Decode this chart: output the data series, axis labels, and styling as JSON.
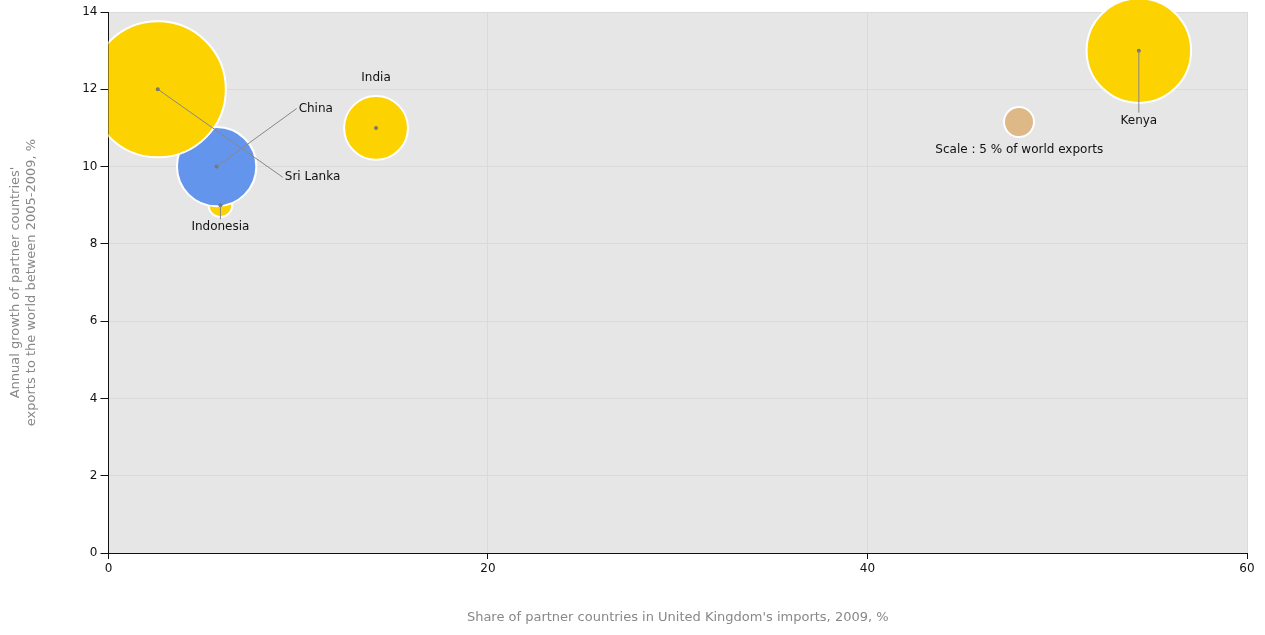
{
  "chart_data": {
    "type": "bubble",
    "xlabel": "Share of partner countries in United Kingdom's imports, 2009, %",
    "ylabel": "Annual growth of partner countries' exports to the world between 2005-2009, %",
    "xlim": [
      0,
      60
    ],
    "xticks": [
      0,
      20,
      40,
      60
    ],
    "ylim": [
      0,
      14
    ],
    "yticks": [
      0,
      2,
      4,
      6,
      8,
      10,
      12,
      14
    ],
    "grid": true,
    "legend": false,
    "annotations": [
      "Scale : 5 % of world exports"
    ],
    "series": [
      {
        "name": "Sri Lanka",
        "color": "#fcd200",
        "x": [
          2.6
        ],
        "values": [
          12
        ],
        "sizes": [
          1
        ]
      },
      {
        "name": "China",
        "color": "#6495ed",
        "x": [
          5.7
        ],
        "values": [
          10
        ],
        "sizes": [
          0.34
        ]
      },
      {
        "name": "India",
        "color": "#fcd200",
        "x": [
          14.1
        ],
        "values": [
          11
        ],
        "sizes": [
          0.22
        ]
      },
      {
        "name": "Indonesia",
        "color": "#fcd200",
        "x": [
          5.9
        ],
        "values": [
          9
        ],
        "sizes": [
          0.03
        ]
      },
      {
        "name": "Kenya",
        "color": "#fcd200",
        "x": [
          54.3
        ],
        "values": [
          13
        ],
        "sizes": [
          0.59
        ]
      }
    ]
  }
}
